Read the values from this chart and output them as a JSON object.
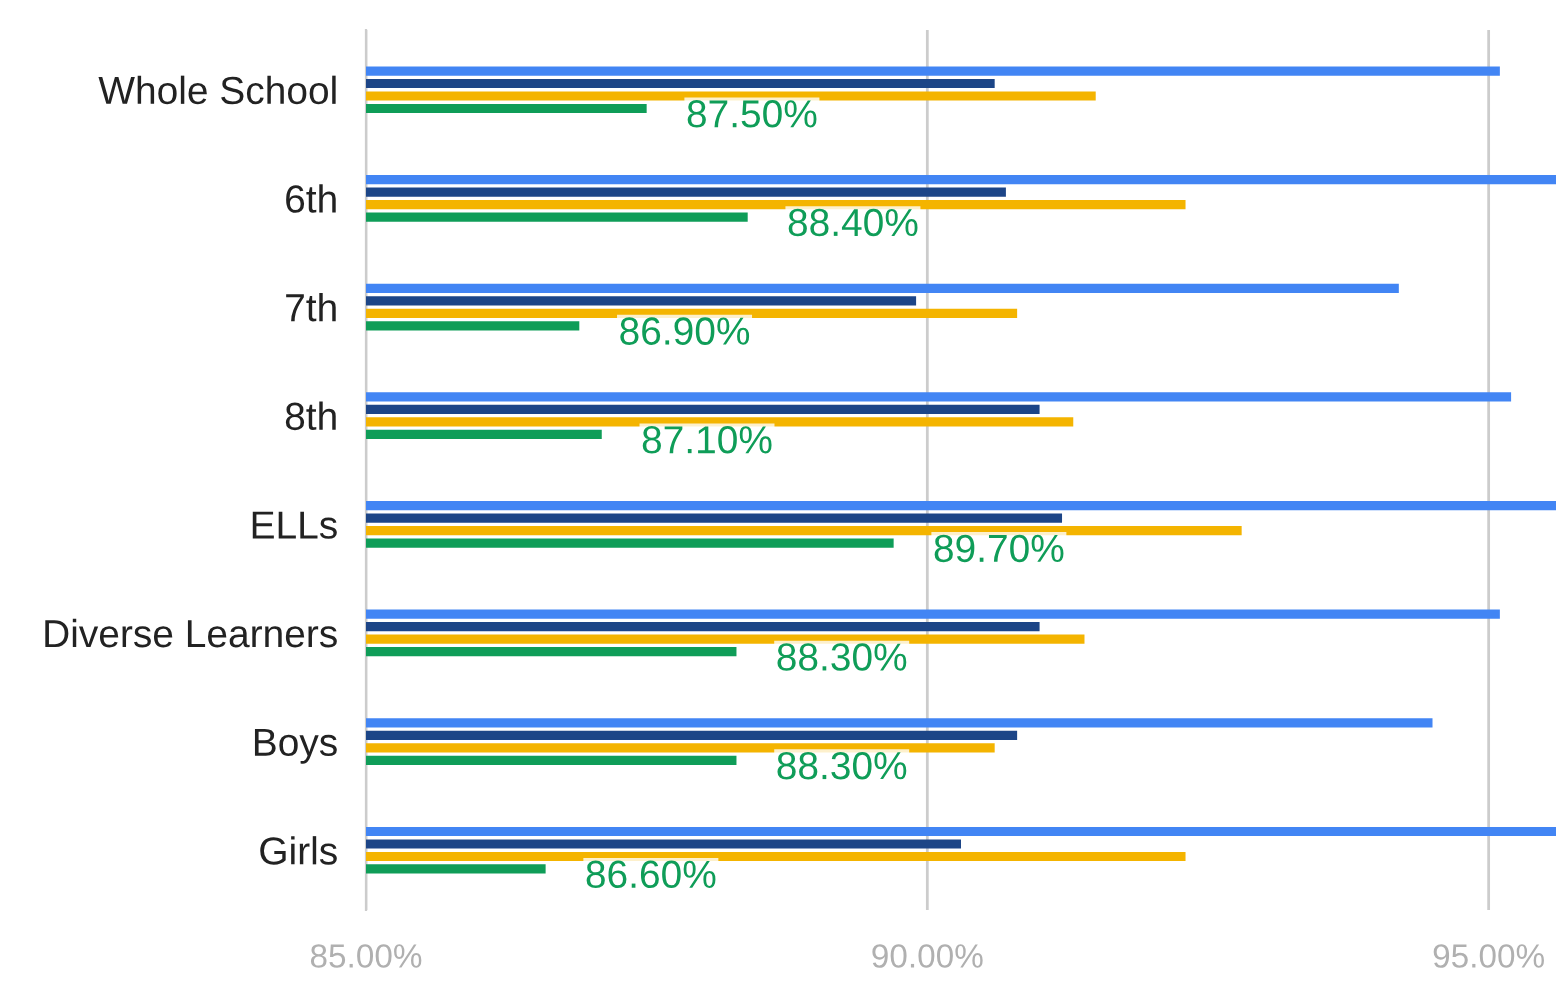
{
  "chart_data": {
    "type": "bar",
    "orientation": "horizontal",
    "categories": [
      "Whole School",
      "6th",
      "7th",
      "8th",
      "ELLs",
      "Diverse Learners",
      "Boys",
      "Girls"
    ],
    "series": [
      {
        "color": "#4285f4",
        "values": [
          95.1,
          95.6,
          94.2,
          95.2,
          95.6,
          95.1,
          94.5,
          95.6
        ]
      },
      {
        "color": "#1c4587",
        "values": [
          90.6,
          90.7,
          89.9,
          91.0,
          91.2,
          91.0,
          90.8,
          90.3
        ]
      },
      {
        "color": "#f4b400",
        "values": [
          91.5,
          92.3,
          90.8,
          91.3,
          92.8,
          91.4,
          90.6,
          92.3
        ]
      },
      {
        "color": "#0f9d58",
        "values": [
          87.5,
          88.4,
          86.9,
          87.1,
          89.7,
          88.3,
          88.3,
          86.6
        ],
        "value_labels": [
          "87.50%",
          "88.40%",
          "86.90%",
          "87.10%",
          "89.70%",
          "88.30%",
          "88.30%",
          "86.60%"
        ]
      }
    ],
    "xlim": [
      85,
      95.6
    ],
    "xticks": [
      {
        "value": 85,
        "label": "85.00%"
      },
      {
        "value": 90,
        "label": "90.00%"
      },
      {
        "value": 95,
        "label": "95.00%"
      }
    ],
    "grid": "x"
  }
}
